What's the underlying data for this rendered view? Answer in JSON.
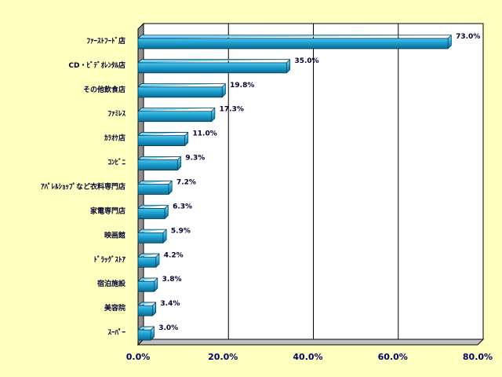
{
  "chart_data": {
    "type": "bar",
    "orientation": "horizontal",
    "categories": [
      "ﾌｧｰｽﾄﾌｰﾄﾞ店",
      "CD・ﾋﾞﾃﾞｵﾚﾝﾀﾙ店",
      "その他飲食店",
      "ﾌｧﾐﾚｽ",
      "ｶﾗｵｹ店",
      "ｺﾝﾋﾞﾆ",
      "ｱﾊﾟﾚﾙｼｮｯﾌﾟなど衣料専門店",
      "家電専門店",
      "映画館",
      "ﾄﾞﾗｯｸﾞｽﾄｱ",
      "宿泊施設",
      "美容院",
      "ｽｰﾊﾟｰ"
    ],
    "values": [
      73.0,
      35.0,
      19.8,
      17.3,
      11.0,
      9.3,
      7.2,
      6.3,
      5.9,
      4.2,
      3.8,
      3.4,
      3.0
    ],
    "value_labels": [
      "73.0%",
      "35.0%",
      "19.8%",
      "17.3%",
      "11.0%",
      "9.3%",
      "7.2%",
      "6.3%",
      "5.9%",
      "4.2%",
      "3.8%",
      "3.4%",
      "3.0%"
    ],
    "color": "#22a8d8",
    "xlim": [
      0,
      80
    ],
    "xticks": [
      {
        "value": 0,
        "label": "0.0%"
      },
      {
        "value": 20,
        "label": "20.0%"
      },
      {
        "value": 40,
        "label": "40.0%"
      },
      {
        "value": 60,
        "label": "60.0%"
      },
      {
        "value": 80,
        "label": "80.0%"
      }
    ],
    "grid": true
  }
}
